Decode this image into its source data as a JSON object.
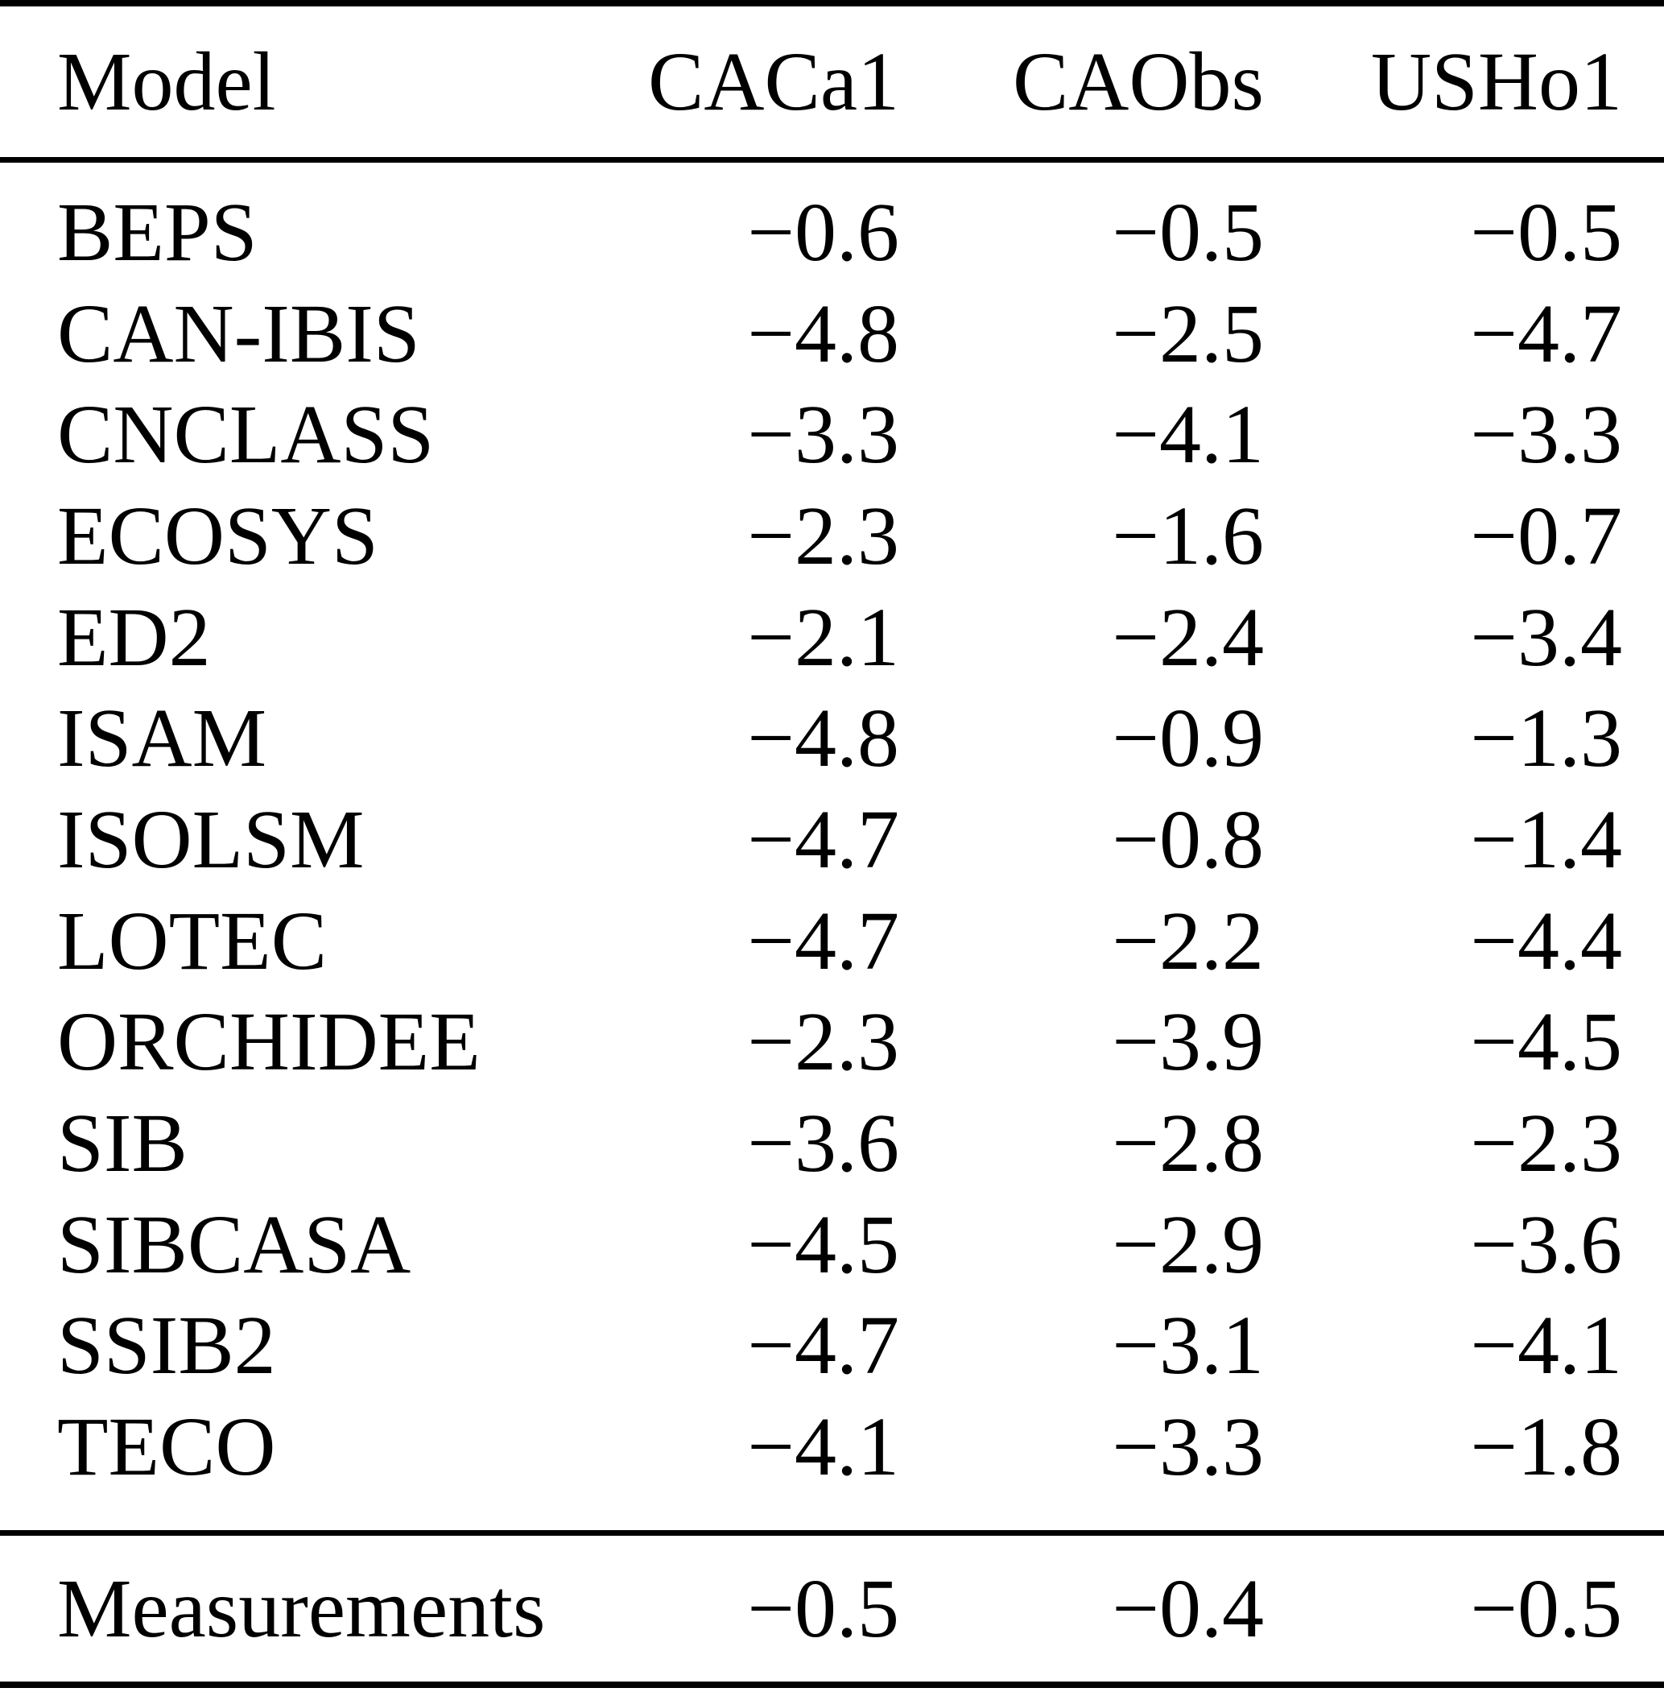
{
  "table": {
    "columns": [
      "Model",
      "CACa1",
      "CAObs",
      "USHo1"
    ],
    "rows": [
      {
        "model": "BEPS",
        "values": [
          "−0.6",
          "−0.5",
          "−0.5"
        ]
      },
      {
        "model": "CAN-IBIS",
        "values": [
          "−4.8",
          "−2.5",
          "−4.7"
        ]
      },
      {
        "model": "CNCLASS",
        "values": [
          "−3.3",
          "−4.1",
          "−3.3"
        ]
      },
      {
        "model": "ECOSYS",
        "values": [
          "−2.3",
          "−1.6",
          "−0.7"
        ]
      },
      {
        "model": "ED2",
        "values": [
          "−2.1",
          "−2.4",
          "−3.4"
        ]
      },
      {
        "model": "ISAM",
        "values": [
          "−4.8",
          "−0.9",
          "−1.3"
        ]
      },
      {
        "model": "ISOLSM",
        "values": [
          "−4.7",
          "−0.8",
          "−1.4"
        ]
      },
      {
        "model": "LOTEC",
        "values": [
          "−4.7",
          "−2.2",
          "−4.4"
        ]
      },
      {
        "model": "ORCHIDEE",
        "values": [
          "−2.3",
          "−3.9",
          "−4.5"
        ]
      },
      {
        "model": "SIB",
        "values": [
          "−3.6",
          "−2.8",
          "−2.3"
        ]
      },
      {
        "model": "SIBCASA",
        "values": [
          "−4.5",
          "−2.9",
          "−3.6"
        ]
      },
      {
        "model": "SSIB2",
        "values": [
          "−4.7",
          "−3.1",
          "−4.1"
        ]
      },
      {
        "model": "TECO",
        "values": [
          "−4.1",
          "−3.3",
          "−1.8"
        ]
      }
    ],
    "footer": {
      "model": "Measurements",
      "values": [
        "−0.5",
        "−0.4",
        "−0.5"
      ]
    },
    "colors": {
      "text": "#000000",
      "background": "#ffffff",
      "rule": "#000000"
    }
  }
}
